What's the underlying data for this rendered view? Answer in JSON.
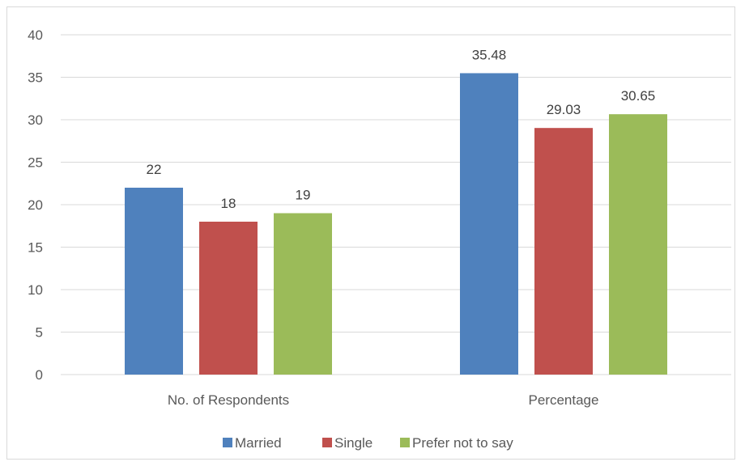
{
  "chart_data": {
    "type": "bar",
    "categories": [
      "No. of Respondents",
      "Percentage"
    ],
    "series": [
      {
        "name": "Married",
        "values": [
          22,
          35.48
        ],
        "color": "#4f81bd"
      },
      {
        "name": "Single",
        "values": [
          18,
          29.03
        ],
        "color": "#c0504d"
      },
      {
        "name": "Prefer not to say",
        "values": [
          19,
          30.65
        ],
        "color": "#9bbb59"
      }
    ],
    "data_labels": [
      [
        "22",
        "35.48"
      ],
      [
        "18",
        "29.03"
      ],
      [
        "19",
        "30.65"
      ]
    ],
    "ylim": [
      0,
      40
    ],
    "yticks": [
      0,
      5,
      10,
      15,
      20,
      25,
      30,
      35,
      40
    ],
    "grid": true,
    "legend": "bottom"
  }
}
